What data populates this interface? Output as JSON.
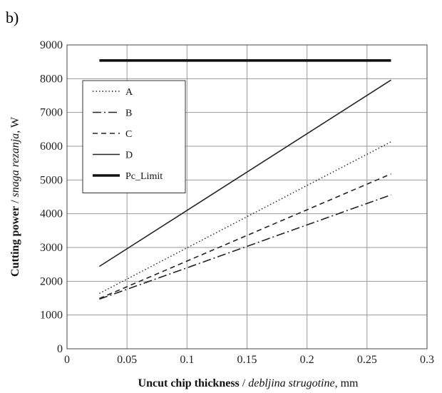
{
  "panel_label": "b)",
  "chart_data": {
    "type": "line",
    "title": "",
    "xlabel_bold": "Uncut chip thickness",
    "xlabel_sep": " / ",
    "xlabel_italic": "debljina strugotine",
    "xlabel_unit": ", mm",
    "ylabel_bold": "Cutting power",
    "ylabel_sep": " / ",
    "ylabel_italic": "snaga rezanja,",
    "ylabel_unit": " W",
    "xlim": [
      0,
      0.3
    ],
    "ylim": [
      0,
      9000
    ],
    "xticks": [
      0,
      0.05,
      0.1,
      0.15,
      0.2,
      0.25,
      0.3
    ],
    "xtick_labels": [
      "0",
      "0.05",
      "0.1",
      "0.15",
      "0.2",
      "0.25",
      "0.3"
    ],
    "yticks": [
      0,
      1000,
      2000,
      3000,
      4000,
      5000,
      6000,
      7000,
      8000,
      9000
    ],
    "ytick_labels": [
      "0",
      "1000",
      "2000",
      "3000",
      "4000",
      "5000",
      "6000",
      "7000",
      "8000",
      "9000"
    ],
    "grid": true,
    "legend_position": "upper-left",
    "series": [
      {
        "name": "A",
        "style": "dotted",
        "x": [
          0.027,
          0.27
        ],
        "y": [
          1640,
          6130
        ],
        "color": "#222222"
      },
      {
        "name": "B",
        "style": "dash-dot",
        "x": [
          0.027,
          0.27
        ],
        "y": [
          1470,
          4560
        ],
        "color": "#222222"
      },
      {
        "name": "C",
        "style": "dashed",
        "x": [
          0.027,
          0.27
        ],
        "y": [
          1490,
          5180
        ],
        "color": "#222222"
      },
      {
        "name": "D",
        "style": "solid",
        "x": [
          0.027,
          0.27
        ],
        "y": [
          2440,
          7960
        ],
        "color": "#222222"
      },
      {
        "name": "Pc_Limit",
        "style": "thick",
        "x": [
          0.027,
          0.27
        ],
        "y": [
          8540,
          8540
        ],
        "color": "#111111"
      }
    ]
  }
}
